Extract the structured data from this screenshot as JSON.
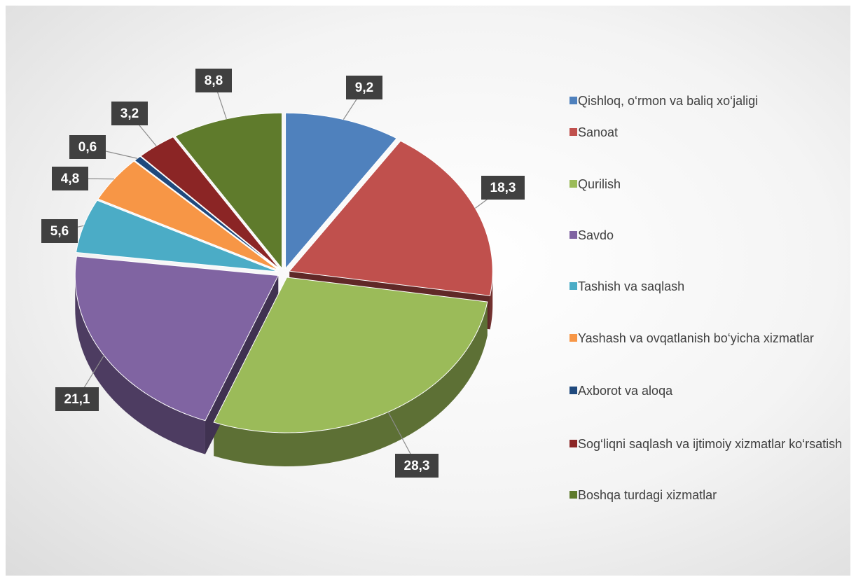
{
  "chart_data": {
    "type": "pie",
    "categories": [
      "Qishloq, o‘rmon va baliq xo‘jaligi",
      "Sanoat",
      "Qurilish",
      "Savdo",
      "Tashish va saqlash",
      "Yashash va ovqatlanish bo‘yicha xizmatlar",
      "Axborot va aloqa",
      "Sog‘liqni saqlash va ijtimoiy xizmatlar ko‘rsatish",
      "Boshqa turdagi xizmatlar"
    ],
    "values": [
      9.2,
      18.3,
      28.3,
      21.1,
      5.6,
      4.8,
      0.6,
      3.2,
      8.8
    ],
    "value_labels": [
      "9,2",
      "18,3",
      "28,3",
      "21,1",
      "5,6",
      "4,8",
      "0,6",
      "3,2",
      "8,8"
    ],
    "colors": [
      "#4f81bd",
      "#c0504d",
      "#9bbb59",
      "#8064a2",
      "#4bacc6",
      "#f79646",
      "#1f497d",
      "#8b2525",
      "#5f7b2c"
    ]
  }
}
